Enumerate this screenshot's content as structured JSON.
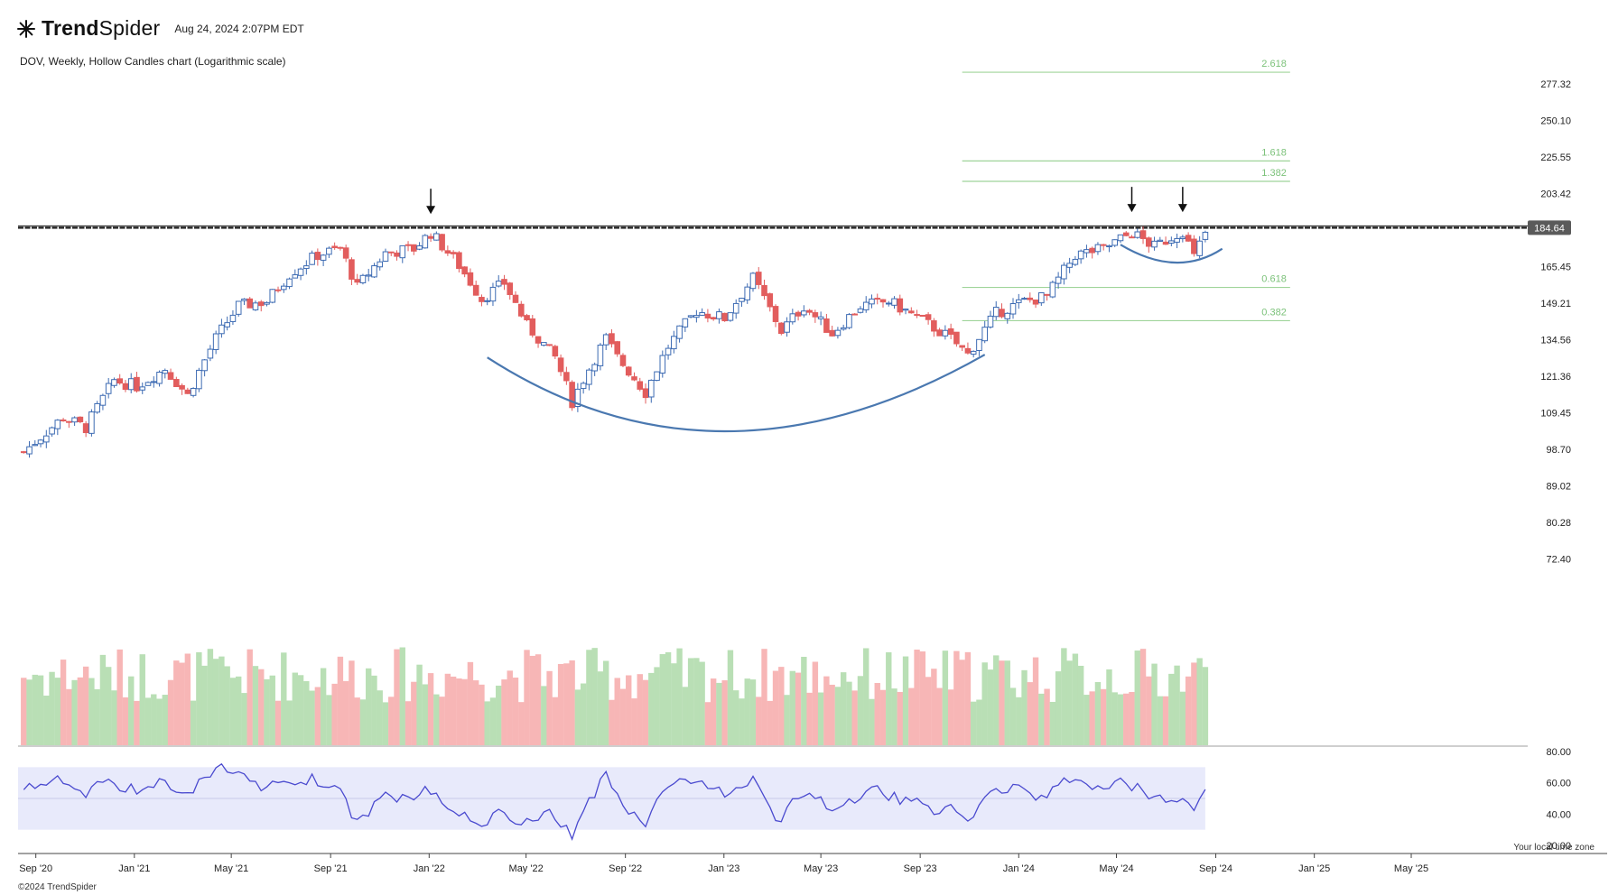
{
  "header": {
    "brand_trend": "Trend",
    "brand_spider": "Spider",
    "datetime": "Aug 24, 2024 2:07PM EDT",
    "subtitle": "DOV, Weekly, Hollow Candles chart (Logarithmic scale)"
  },
  "footer": {
    "copyright": "©2024 TrendSpider",
    "timezone_note": "Your local time zone"
  },
  "colors": {
    "up": "#3d6bb3",
    "down": "#e25d5d",
    "vol_up": "#b9dfb5",
    "vol_down": "#f7b6b6",
    "fib": "#9fd49a",
    "fib_text": "#7cc27a",
    "rsi_line": "#4a4acf",
    "rsi_band": "#e8eafb",
    "curve": "#4a78b0",
    "resistance": "#111111",
    "price_tag": "#5a5a5a"
  },
  "chart_data": {
    "type": "candlestick",
    "symbol": "DOV",
    "interval": "Weekly",
    "scale": "log",
    "y_ticks": [
      "277.32",
      "250.10",
      "225.55",
      "203.42",
      "165.45",
      "149.21",
      "134.56",
      "121.36",
      "109.45",
      "98.70",
      "89.02",
      "80.28",
      "72.40"
    ],
    "y_range": [
      65,
      300
    ],
    "x_ticks": [
      "Sep '20",
      "Jan '21",
      "May '21",
      "Sep '21",
      "Jan '22",
      "May '22",
      "Sep '22",
      "Jan '23",
      "May '23",
      "Sep '23",
      "Jan '24",
      "May '24",
      "Sep '24",
      "Jan '25",
      "May '25"
    ],
    "x_range": [
      "2020-08-10",
      "2025-05-20"
    ],
    "resistance_level": 184.64,
    "last_price_label": "184.64",
    "fib_levels": [
      {
        "label": "2.618",
        "value": 286.5
      },
      {
        "label": "1.618",
        "value": 223
      },
      {
        "label": "1.382",
        "value": 210.5
      },
      {
        "label": "0.618",
        "value": 156
      },
      {
        "label": "0.382",
        "value": 142
      }
    ],
    "fib_range": [
      "2023-10-23",
      "2024-12-02"
    ],
    "arrows": [
      {
        "date": "2022-01-03",
        "value": 190
      },
      {
        "date": "2024-05-20",
        "value": 191
      },
      {
        "date": "2024-07-22",
        "value": 191
      }
    ],
    "rsi_ticks": [
      "80.00",
      "60.00",
      "40.00",
      "20.00"
    ],
    "rsi_band": [
      30,
      70
    ],
    "rsi_mid": 50,
    "anchors": [
      [
        "2020-08-17",
        98
      ],
      [
        "2020-10-05",
        108
      ],
      [
        "2020-11-02",
        105
      ],
      [
        "2020-12-07",
        120
      ],
      [
        "2021-01-04",
        118
      ],
      [
        "2021-02-08",
        124
      ],
      [
        "2021-03-08",
        115
      ],
      [
        "2021-04-12",
        135
      ],
      [
        "2021-05-10",
        148
      ],
      [
        "2021-06-14",
        150
      ],
      [
        "2021-07-12",
        162
      ],
      [
        "2021-08-16",
        171
      ],
      [
        "2021-09-13",
        174
      ],
      [
        "2021-10-04",
        156
      ],
      [
        "2021-11-08",
        172
      ],
      [
        "2021-12-13",
        174
      ],
      [
        "2022-01-03",
        182
      ],
      [
        "2022-02-07",
        166
      ],
      [
        "2022-03-07",
        151
      ],
      [
        "2022-04-04",
        158
      ],
      [
        "2022-05-02",
        140
      ],
      [
        "2022-06-06",
        128
      ],
      [
        "2022-06-27",
        113
      ],
      [
        "2022-08-08",
        135
      ],
      [
        "2022-08-22",
        128
      ],
      [
        "2022-09-26",
        116
      ],
      [
        "2022-10-24",
        132
      ],
      [
        "2022-11-28",
        146
      ],
      [
        "2023-01-02",
        143
      ],
      [
        "2023-02-06",
        160
      ],
      [
        "2023-03-13",
        138
      ],
      [
        "2023-04-10",
        148
      ],
      [
        "2023-05-15",
        137
      ],
      [
        "2023-06-19",
        148
      ],
      [
        "2023-07-24",
        150
      ],
      [
        "2023-09-04",
        142
      ],
      [
        "2023-10-09",
        135
      ],
      [
        "2023-10-30",
        129
      ],
      [
        "2023-12-04",
        145
      ],
      [
        "2024-01-08",
        150
      ],
      [
        "2024-02-05",
        152
      ],
      [
        "2024-03-11",
        171
      ],
      [
        "2024-04-15",
        174
      ],
      [
        "2024-05-20",
        182
      ],
      [
        "2024-06-17",
        175
      ],
      [
        "2024-07-22",
        183
      ],
      [
        "2024-08-05",
        170
      ],
      [
        "2024-08-19",
        182
      ]
    ]
  }
}
